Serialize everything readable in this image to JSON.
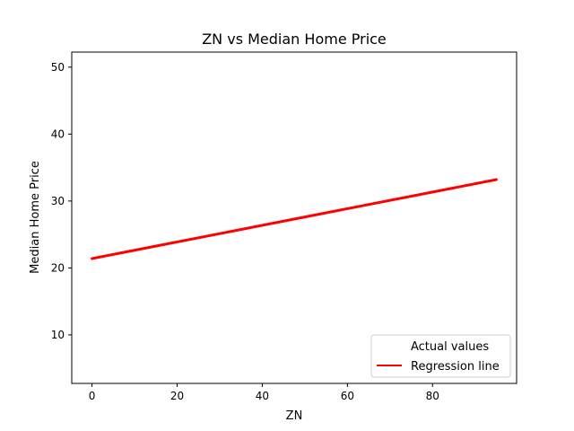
{
  "chart_data": {
    "type": "line",
    "title": "ZN vs Median Home Price",
    "xlabel": "ZN",
    "ylabel": "Median Home Price",
    "xlim": [
      -4.75,
      99.75
    ],
    "ylim": [
      2.75,
      52.25
    ],
    "xticks": [
      0,
      20,
      40,
      60,
      80
    ],
    "yticks": [
      10,
      20,
      30,
      40,
      50
    ],
    "grid": false,
    "legend_position": "lower right",
    "series": [
      {
        "name": "Actual values",
        "kind": "scatter",
        "color": "#ffffff",
        "points": []
      },
      {
        "name": "Regression line",
        "kind": "line",
        "color": "#ff0000",
        "x": [
          0,
          95
        ],
        "y": [
          21.4,
          33.2
        ]
      }
    ]
  }
}
